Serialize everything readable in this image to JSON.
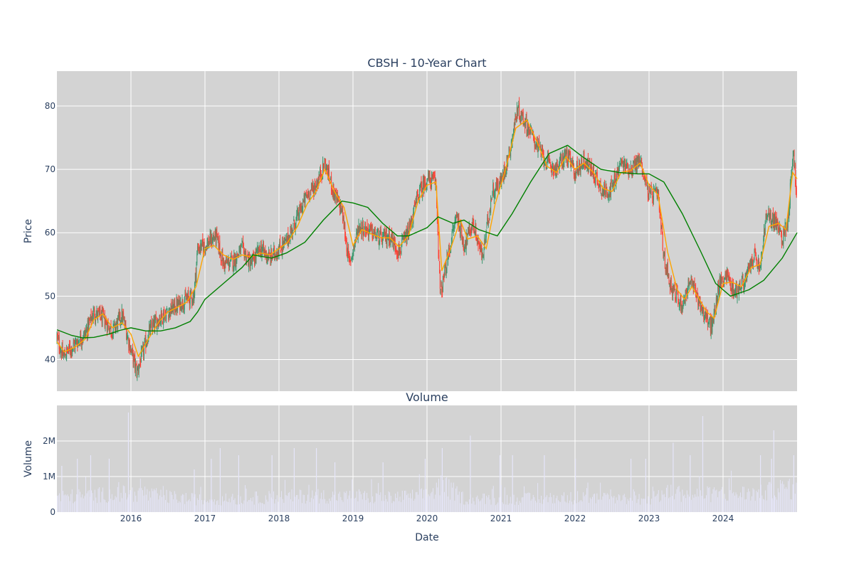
{
  "chart_data": [
    {
      "type": "candlestick",
      "title": "CBSH - 10-Year Chart",
      "xlabel": "",
      "ylabel": "Price",
      "ylim": [
        35,
        85.5
      ],
      "yticks": [
        40,
        50,
        60,
        70,
        80
      ],
      "xlim": [
        2015.0,
        2025.0
      ],
      "xticks": [
        2016,
        2017,
        2018,
        2019,
        2020,
        2021,
        2022,
        2023,
        2024
      ],
      "xtick_labels": [
        "2016",
        "2017",
        "2018",
        "2019",
        "2020",
        "2021",
        "2022",
        "2023",
        "2024"
      ],
      "grid": true,
      "up_color": "#3d9970",
      "down_color": "#ff4136",
      "close_anchors": [
        [
          2015.0,
          43.5
        ],
        [
          2015.08,
          40.5
        ],
        [
          2015.25,
          42.5
        ],
        [
          2015.38,
          44.0
        ],
        [
          2015.5,
          47.5
        ],
        [
          2015.62,
          46.5
        ],
        [
          2015.75,
          44.5
        ],
        [
          2015.88,
          47.0
        ],
        [
          2016.0,
          41.5
        ],
        [
          2016.08,
          38.0
        ],
        [
          2016.25,
          44.5
        ],
        [
          2016.38,
          46.5
        ],
        [
          2016.5,
          47.5
        ],
        [
          2016.62,
          48.5
        ],
        [
          2016.75,
          49.5
        ],
        [
          2016.85,
          50.0
        ],
        [
          2016.9,
          57.5
        ],
        [
          2017.0,
          58.0
        ],
        [
          2017.15,
          59.5
        ],
        [
          2017.25,
          55.0
        ],
        [
          2017.38,
          55.5
        ],
        [
          2017.5,
          57.5
        ],
        [
          2017.62,
          55.0
        ],
        [
          2017.75,
          57.5
        ],
        [
          2017.88,
          56.0
        ],
        [
          2018.0,
          57.5
        ],
        [
          2018.1,
          58.5
        ],
        [
          2018.25,
          62.5
        ],
        [
          2018.38,
          66.0
        ],
        [
          2018.5,
          67.5
        ],
        [
          2018.62,
          71.0
        ],
        [
          2018.75,
          66.0
        ],
        [
          2018.85,
          63.5
        ],
        [
          2018.95,
          55.0
        ],
        [
          2019.08,
          61.0
        ],
        [
          2019.2,
          60.5
        ],
        [
          2019.38,
          59.0
        ],
        [
          2019.5,
          59.5
        ],
        [
          2019.62,
          57.0
        ],
        [
          2019.75,
          60.0
        ],
        [
          2019.88,
          66.0
        ],
        [
          2020.0,
          68.5
        ],
        [
          2020.12,
          68.0
        ],
        [
          2020.18,
          50.0
        ],
        [
          2020.28,
          56.0
        ],
        [
          2020.4,
          63.0
        ],
        [
          2020.5,
          58.0
        ],
        [
          2020.62,
          61.5
        ],
        [
          2020.75,
          56.0
        ],
        [
          2020.88,
          66.5
        ],
        [
          2021.0,
          68.0
        ],
        [
          2021.12,
          73.0
        ],
        [
          2021.22,
          79.5
        ],
        [
          2021.35,
          77.0
        ],
        [
          2021.5,
          73.5
        ],
        [
          2021.62,
          71.0
        ],
        [
          2021.75,
          70.0
        ],
        [
          2021.88,
          72.5
        ],
        [
          2022.0,
          69.5
        ],
        [
          2022.12,
          71.5
        ],
        [
          2022.25,
          69.5
        ],
        [
          2022.38,
          66.5
        ],
        [
          2022.5,
          67.0
        ],
        [
          2022.62,
          71.0
        ],
        [
          2022.75,
          70.0
        ],
        [
          2022.88,
          71.5
        ],
        [
          2023.0,
          66.0
        ],
        [
          2023.12,
          66.0
        ],
        [
          2023.2,
          56.0
        ],
        [
          2023.3,
          51.5
        ],
        [
          2023.45,
          48.5
        ],
        [
          2023.55,
          52.5
        ],
        [
          2023.65,
          50.0
        ],
        [
          2023.75,
          47.0
        ],
        [
          2023.85,
          45.0
        ],
        [
          2023.95,
          52.0
        ],
        [
          2024.05,
          53.5
        ],
        [
          2024.15,
          50.5
        ],
        [
          2024.3,
          52.5
        ],
        [
          2024.42,
          56.5
        ],
        [
          2024.5,
          54.0
        ],
        [
          2024.58,
          62.5
        ],
        [
          2024.7,
          62.0
        ],
        [
          2024.8,
          59.0
        ],
        [
          2024.88,
          62.5
        ],
        [
          2024.95,
          73.5
        ],
        [
          2025.0,
          64.0
        ]
      ],
      "series": [
        {
          "name": "",
          "color": "#ffa500",
          "values": [
            [
              2015.0,
              42.8
            ],
            [
              2015.1,
              41.2
            ],
            [
              2015.25,
              42.0
            ],
            [
              2015.38,
              43.2
            ],
            [
              2015.5,
              46.3
            ],
            [
              2015.62,
              47.2
            ],
            [
              2015.75,
              45.0
            ],
            [
              2015.88,
              45.8
            ],
            [
              2016.0,
              44.0
            ],
            [
              2016.1,
              40.5
            ],
            [
              2016.25,
              43.5
            ],
            [
              2016.38,
              46.0
            ],
            [
              2016.5,
              47.5
            ],
            [
              2016.62,
              48.2
            ],
            [
              2016.75,
              49.0
            ],
            [
              2016.88,
              51.5
            ],
            [
              2017.0,
              57.5
            ],
            [
              2017.12,
              58.0
            ],
            [
              2017.25,
              56.5
            ],
            [
              2017.38,
              55.8
            ],
            [
              2017.5,
              56.5
            ],
            [
              2017.62,
              56.2
            ],
            [
              2017.75,
              56.8
            ],
            [
              2017.88,
              56.5
            ],
            [
              2018.0,
              57.5
            ],
            [
              2018.12,
              58.5
            ],
            [
              2018.25,
              61.0
            ],
            [
              2018.38,
              64.5
            ],
            [
              2018.5,
              66.5
            ],
            [
              2018.62,
              70.0
            ],
            [
              2018.75,
              66.5
            ],
            [
              2018.88,
              64.0
            ],
            [
              2019.0,
              58.0
            ],
            [
              2019.12,
              60.5
            ],
            [
              2019.25,
              59.8
            ],
            [
              2019.38,
              59.2
            ],
            [
              2019.5,
              59.2
            ],
            [
              2019.62,
              57.8
            ],
            [
              2019.75,
              59.5
            ],
            [
              2019.88,
              65.0
            ],
            [
              2020.0,
              67.5
            ],
            [
              2020.12,
              68.0
            ],
            [
              2020.2,
              54.0
            ],
            [
              2020.32,
              57.5
            ],
            [
              2020.45,
              62.0
            ],
            [
              2020.55,
              59.0
            ],
            [
              2020.68,
              59.5
            ],
            [
              2020.8,
              57.5
            ],
            [
              2020.92,
              64.5
            ],
            [
              2021.05,
              69.5
            ],
            [
              2021.2,
              76.5
            ],
            [
              2021.35,
              77.8
            ],
            [
              2021.5,
              74.0
            ],
            [
              2021.62,
              70.5
            ],
            [
              2021.75,
              69.5
            ],
            [
              2021.88,
              72.0
            ],
            [
              2022.0,
              70.0
            ],
            [
              2022.12,
              71.0
            ],
            [
              2022.25,
              69.5
            ],
            [
              2022.38,
              67.0
            ],
            [
              2022.5,
              66.5
            ],
            [
              2022.62,
              69.5
            ],
            [
              2022.75,
              69.8
            ],
            [
              2022.88,
              71.0
            ],
            [
              2023.0,
              67.5
            ],
            [
              2023.12,
              66.0
            ],
            [
              2023.25,
              57.0
            ],
            [
              2023.38,
              51.0
            ],
            [
              2023.48,
              49.5
            ],
            [
              2023.58,
              51.5
            ],
            [
              2023.68,
              49.5
            ],
            [
              2023.78,
              47.5
            ],
            [
              2023.88,
              46.5
            ],
            [
              2024.0,
              52.0
            ],
            [
              2024.12,
              52.2
            ],
            [
              2024.25,
              51.5
            ],
            [
              2024.38,
              54.5
            ],
            [
              2024.5,
              55.0
            ],
            [
              2024.62,
              61.0
            ],
            [
              2024.75,
              61.5
            ],
            [
              2024.85,
              60.5
            ],
            [
              2024.94,
              69.5
            ],
            [
              2025.0,
              68.5
            ]
          ]
        },
        {
          "name": "",
          "color": "#008000",
          "values": [
            [
              2015.0,
              44.7
            ],
            [
              2015.2,
              43.8
            ],
            [
              2015.35,
              43.4
            ],
            [
              2015.5,
              43.5
            ],
            [
              2015.7,
              44.0
            ],
            [
              2015.85,
              44.6
            ],
            [
              2016.0,
              45.0
            ],
            [
              2016.2,
              44.5
            ],
            [
              2016.4,
              44.5
            ],
            [
              2016.6,
              45.0
            ],
            [
              2016.8,
              46.0
            ],
            [
              2016.9,
              47.5
            ],
            [
              2017.0,
              49.5
            ],
            [
              2017.25,
              52.0
            ],
            [
              2017.5,
              54.5
            ],
            [
              2017.65,
              56.5
            ],
            [
              2017.9,
              56.0
            ],
            [
              2018.1,
              56.8
            ],
            [
              2018.35,
              58.5
            ],
            [
              2018.6,
              62.0
            ],
            [
              2018.85,
              65.0
            ],
            [
              2019.0,
              64.7
            ],
            [
              2019.2,
              64.0
            ],
            [
              2019.4,
              61.5
            ],
            [
              2019.6,
              59.5
            ],
            [
              2019.75,
              59.5
            ],
            [
              2020.0,
              60.8
            ],
            [
              2020.15,
              62.5
            ],
            [
              2020.35,
              61.5
            ],
            [
              2020.5,
              62.0
            ],
            [
              2020.7,
              60.5
            ],
            [
              2020.95,
              59.5
            ],
            [
              2021.15,
              63.0
            ],
            [
              2021.4,
              68.0
            ],
            [
              2021.65,
              72.5
            ],
            [
              2021.9,
              73.8
            ],
            [
              2022.1,
              72.0
            ],
            [
              2022.35,
              70.0
            ],
            [
              2022.6,
              69.5
            ],
            [
              2022.85,
              69.3
            ],
            [
              2023.0,
              69.3
            ],
            [
              2023.2,
              68.0
            ],
            [
              2023.45,
              63.0
            ],
            [
              2023.7,
              57.0
            ],
            [
              2023.9,
              52.0
            ],
            [
              2024.1,
              50.0
            ],
            [
              2024.35,
              51.0
            ],
            [
              2024.55,
              52.5
            ],
            [
              2024.8,
              56.0
            ],
            [
              2025.0,
              60.0
            ]
          ]
        }
      ]
    },
    {
      "type": "bar",
      "title": "Volume",
      "xlabel": "Date",
      "ylabel": "Volume",
      "ylim": [
        0,
        3000000
      ],
      "yticks": [
        0,
        1000000,
        2000000
      ],
      "ytick_labels": [
        "0",
        "1M",
        "2M"
      ],
      "xlim": [
        2015.0,
        2025.0
      ],
      "xticks": [
        2016,
        2017,
        2018,
        2019,
        2020,
        2021,
        2022,
        2023,
        2024
      ],
      "xtick_labels": [
        "2016",
        "2017",
        "2018",
        "2019",
        "2020",
        "2021",
        "2022",
        "2023",
        "2024"
      ],
      "grid": true,
      "bar_color": "#e6e6fa",
      "baseline_anchors": [
        [
          2015.0,
          450000
        ],
        [
          2015.5,
          500000
        ],
        [
          2016.0,
          550000
        ],
        [
          2016.5,
          450000
        ],
        [
          2017.0,
          350000
        ],
        [
          2017.5,
          400000
        ],
        [
          2018.0,
          450000
        ],
        [
          2018.5,
          480000
        ],
        [
          2019.0,
          450000
        ],
        [
          2019.5,
          420000
        ],
        [
          2020.0,
          500000
        ],
        [
          2020.2,
          800000
        ],
        [
          2020.5,
          400000
        ],
        [
          2021.0,
          380000
        ],
        [
          2021.5,
          400000
        ],
        [
          2022.0,
          420000
        ],
        [
          2022.5,
          400000
        ],
        [
          2023.0,
          380000
        ],
        [
          2023.3,
          600000
        ],
        [
          2023.6,
          500000
        ],
        [
          2024.0,
          550000
        ],
        [
          2024.5,
          550000
        ],
        [
          2024.8,
          700000
        ],
        [
          2025.0,
          650000
        ]
      ],
      "spikes": [
        [
          2015.06,
          1300000
        ],
        [
          2015.27,
          1500000
        ],
        [
          2015.45,
          1600000
        ],
        [
          2015.7,
          1500000
        ],
        [
          2015.96,
          2800000
        ],
        [
          2016.85,
          1200000
        ],
        [
          2017.08,
          1500000
        ],
        [
          2017.2,
          1800000
        ],
        [
          2017.45,
          1600000
        ],
        [
          2017.9,
          1600000
        ],
        [
          2018.2,
          1800000
        ],
        [
          2018.5,
          1800000
        ],
        [
          2018.75,
          1400000
        ],
        [
          2019.4,
          1400000
        ],
        [
          2019.97,
          1500000
        ],
        [
          2020.2,
          1800000
        ],
        [
          2020.58,
          2150000
        ],
        [
          2020.98,
          1600000
        ],
        [
          2021.15,
          1600000
        ],
        [
          2021.58,
          1600000
        ],
        [
          2022.0,
          1500000
        ],
        [
          2022.75,
          1500000
        ],
        [
          2022.95,
          1500000
        ],
        [
          2023.32,
          1950000
        ],
        [
          2023.55,
          1600000
        ],
        [
          2023.72,
          2700000
        ],
        [
          2024.5,
          1600000
        ],
        [
          2024.65,
          1500000
        ],
        [
          2024.68,
          2300000
        ],
        [
          2024.95,
          1600000
        ]
      ]
    }
  ]
}
